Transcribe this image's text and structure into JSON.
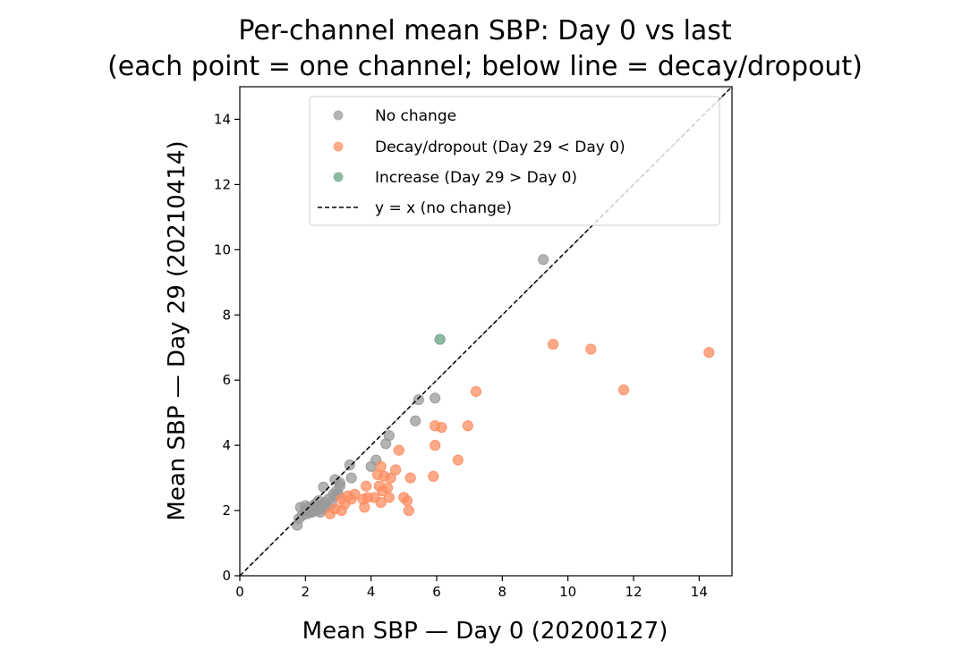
{
  "chart_data": {
    "type": "scatter",
    "title_lines": [
      "Per-channel mean SBP: Day 0 vs last",
      "(each point = one channel; below line = decay/dropout)"
    ],
    "xlabel": "Mean SBP — Day 0 (20200127)",
    "ylabel": "Mean SBP — Day 29 (20210414)",
    "xlim": [
      0,
      15
    ],
    "ylim": [
      0,
      15
    ],
    "xticks": [
      0,
      2,
      4,
      6,
      8,
      10,
      12,
      14
    ],
    "yticks": [
      0,
      2,
      4,
      6,
      8,
      10,
      12,
      14
    ],
    "grid": false,
    "legend_position": "top-right",
    "reference_line": {
      "label": "y = x (no change)",
      "slope": 1,
      "intercept": 0,
      "style": "dashed",
      "color": "#000000"
    },
    "diagonal_guide": {
      "color": "#bbbbbb",
      "style": "dashed"
    },
    "series": [
      {
        "name": "No change",
        "color": "#999999",
        "points": [
          [
            1.75,
            1.55
          ],
          [
            1.8,
            1.75
          ],
          [
            1.85,
            2.1
          ],
          [
            1.9,
            1.85
          ],
          [
            2.0,
            2.0
          ],
          [
            2.05,
            1.9
          ],
          [
            2.1,
            2.1
          ],
          [
            2.15,
            1.95
          ],
          [
            2.2,
            2.05
          ],
          [
            2.3,
            2.2
          ],
          [
            2.35,
            2.0
          ],
          [
            2.4,
            2.3
          ],
          [
            2.45,
            1.95
          ],
          [
            2.5,
            2.15
          ],
          [
            2.55,
            2.05
          ],
          [
            2.6,
            2.25
          ],
          [
            2.65,
            2.1
          ],
          [
            2.7,
            2.35
          ],
          [
            2.8,
            2.2
          ],
          [
            2.85,
            2.5
          ],
          [
            2.9,
            2.45
          ],
          [
            2.95,
            2.6
          ],
          [
            3.0,
            2.5
          ],
          [
            3.05,
            2.85
          ],
          [
            2.55,
            2.72
          ],
          [
            2.9,
            2.95
          ],
          [
            3.05,
            2.75
          ],
          [
            3.35,
            3.4
          ],
          [
            3.4,
            3.0
          ],
          [
            4.0,
            3.35
          ],
          [
            4.15,
            3.55
          ],
          [
            4.45,
            4.05
          ],
          [
            4.55,
            4.3
          ],
          [
            5.35,
            4.75
          ],
          [
            5.45,
            5.4
          ],
          [
            5.95,
            5.45
          ],
          [
            9.25,
            9.7
          ],
          [
            2.25,
            2.15
          ],
          [
            2.0,
            2.15
          ],
          [
            2.2,
            1.95
          ]
        ]
      },
      {
        "name": "Decay/dropout (Day 29 < Day 0)",
        "color": "#fc8d62",
        "points": [
          [
            2.75,
            1.9
          ],
          [
            2.9,
            2.05
          ],
          [
            3.1,
            2.0
          ],
          [
            3.1,
            2.35
          ],
          [
            3.2,
            2.2
          ],
          [
            3.3,
            2.45
          ],
          [
            3.4,
            2.35
          ],
          [
            3.5,
            2.5
          ],
          [
            3.75,
            2.35
          ],
          [
            3.8,
            2.1
          ],
          [
            3.85,
            2.75
          ],
          [
            3.9,
            2.4
          ],
          [
            4.1,
            2.4
          ],
          [
            4.2,
            3.1
          ],
          [
            4.25,
            2.75
          ],
          [
            4.3,
            3.35
          ],
          [
            4.3,
            2.25
          ],
          [
            4.35,
            2.6
          ],
          [
            4.4,
            3.05
          ],
          [
            4.5,
            2.7
          ],
          [
            4.55,
            2.4
          ],
          [
            4.6,
            3.0
          ],
          [
            4.75,
            3.25
          ],
          [
            4.85,
            3.85
          ],
          [
            5.0,
            2.4
          ],
          [
            5.1,
            2.3
          ],
          [
            5.15,
            2.0
          ],
          [
            5.2,
            3.0
          ],
          [
            5.9,
            3.05
          ],
          [
            5.95,
            4.0
          ],
          [
            5.95,
            4.6
          ],
          [
            6.15,
            4.55
          ],
          [
            6.65,
            3.55
          ],
          [
            6.95,
            4.6
          ],
          [
            7.2,
            5.65
          ],
          [
            9.55,
            7.1
          ],
          [
            10.7,
            6.95
          ],
          [
            11.7,
            5.7
          ],
          [
            14.3,
            6.85
          ]
        ]
      },
      {
        "name": "Increase (Day 29 > Day 0)",
        "color": "#66a182",
        "points": [
          [
            6.1,
            7.25
          ]
        ]
      }
    ]
  }
}
